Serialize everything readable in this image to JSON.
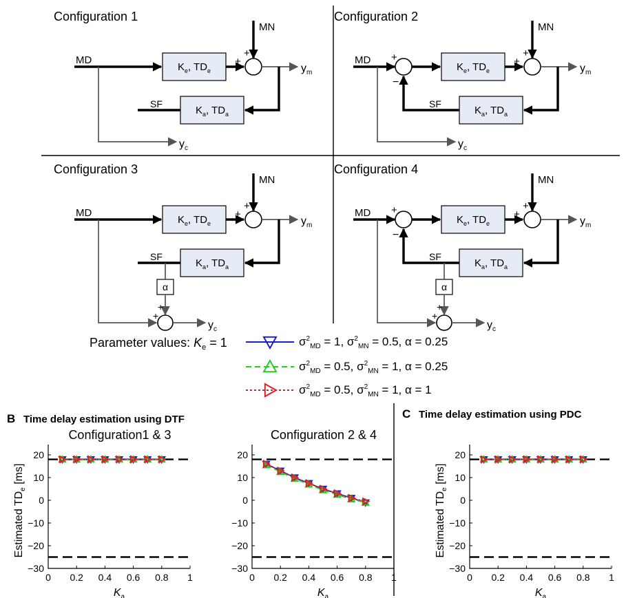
{
  "configurations": [
    {
      "title": "Configuration 1",
      "input": "MD",
      "noise": "MN",
      "feedback": "SF",
      "forward_block": {
        "k": "K",
        "k_sub": "e",
        "td": "TD",
        "td_sub": "e"
      },
      "feedback_block": {
        "k": "K",
        "k_sub": "a",
        "td": "TD",
        "td_sub": "a"
      },
      "out_m": "y",
      "out_m_sub": "m",
      "out_c": "y",
      "out_c_sub": "c",
      "plus": "+",
      "minus": "−"
    },
    {
      "title": "Configuration 2",
      "input": "MD",
      "noise": "MN",
      "feedback": "SF",
      "forward_block": {
        "k": "K",
        "k_sub": "e",
        "td": "TD",
        "td_sub": "e"
      },
      "feedback_block": {
        "k": "K",
        "k_sub": "a",
        "td": "TD",
        "td_sub": "a"
      },
      "out_m": "y",
      "out_m_sub": "m",
      "out_c": "y",
      "out_c_sub": "c",
      "plus": "+",
      "minus": "−"
    },
    {
      "title": "Configuration 3",
      "input": "MD",
      "noise": "MN",
      "feedback": "SF",
      "gain": "α",
      "forward_block": {
        "k": "K",
        "k_sub": "e",
        "td": "TD",
        "td_sub": "e"
      },
      "feedback_block": {
        "k": "K",
        "k_sub": "a",
        "td": "TD",
        "td_sub": "a"
      },
      "out_m": "y",
      "out_m_sub": "m",
      "out_c": "y",
      "out_c_sub": "c",
      "plus": "+",
      "minus": "−"
    },
    {
      "title": "Configuration 4",
      "input": "MD",
      "noise": "MN",
      "feedback": "SF",
      "gain": "α",
      "forward_block": {
        "k": "K",
        "k_sub": "e",
        "td": "TD",
        "td_sub": "e"
      },
      "feedback_block": {
        "k": "K",
        "k_sub": "a",
        "td": "TD",
        "td_sub": "a"
      },
      "out_m": "y",
      "out_m_sub": "m",
      "out_c": "y",
      "out_c_sub": "c",
      "plus": "+",
      "minus": "−"
    }
  ],
  "legend": {
    "prefix": "Parameter values: ",
    "k_symbol": "K",
    "k_sub": "e",
    "k_value": " = 1",
    "entries": [
      {
        "sigma": "σ",
        "sup": "2",
        "sub1": "MD",
        "eq1": " = 1, σ",
        "sub2": "MN",
        "eq2": " = 0.5, α = 0.25",
        "color": "#1c1cc8",
        "marker": "triangle-down",
        "dash": "solid"
      },
      {
        "sigma": "σ",
        "sup": "2",
        "sub1": "MD",
        "eq1": " = 0.5, σ",
        "sub2": "MN",
        "eq2": " = 1, α = 0.25",
        "color": "#22cc22",
        "marker": "triangle-up",
        "dash": "dashed"
      },
      {
        "sigma": "σ",
        "sup": "2",
        "sub1": "MD",
        "eq1": " = 0.5, σ",
        "sub2": "MN",
        "eq2": " = 1, α = 1",
        "color": "#e02020",
        "marker": "triangle-right",
        "dash": "dotted"
      }
    ]
  },
  "sections": {
    "B": {
      "letter": "B",
      "title": "Time delay estimation using DTF"
    },
    "C": {
      "letter": "C",
      "title": "Time delay estimation using PDC"
    }
  },
  "chart_data": [
    {
      "type": "line",
      "title": "Configuration1 & 3",
      "ylabel": "Estimated TD",
      "ylabel_sub": "e",
      "ylabel_unit": " [ms]",
      "xlabel": "K",
      "xlabel_sub": "a",
      "xlim": [
        0,
        1
      ],
      "ylim": [
        -30,
        20
      ],
      "xticks": [
        0,
        0.2,
        0.4,
        0.6,
        0.8,
        1
      ],
      "xtick_labels": [
        "0",
        "0.2",
        "0.4",
        "0.6",
        "0.8",
        "1"
      ],
      "yticks": [
        20,
        10,
        0,
        -10,
        -20,
        -30
      ],
      "ytick_labels": [
        "20",
        "10",
        "0",
        "−10",
        "−20",
        "−30"
      ],
      "reference_lines": [
        18,
        -25
      ],
      "x": [
        0.1,
        0.2,
        0.3,
        0.4,
        0.5,
        0.6,
        0.7,
        0.8
      ],
      "series": [
        {
          "values": [
            18,
            18,
            18,
            18,
            18,
            18,
            18,
            18
          ]
        },
        {
          "values": [
            18,
            18,
            18,
            18,
            18,
            18,
            18,
            18
          ]
        },
        {
          "values": [
            18,
            18,
            18,
            18,
            18,
            18,
            18,
            18
          ]
        }
      ]
    },
    {
      "type": "line",
      "title": "Configuration 2 & 4",
      "xlabel": "K",
      "xlabel_sub": "a",
      "xlim": [
        0,
        1
      ],
      "ylim": [
        -30,
        20
      ],
      "xticks": [
        0,
        0.2,
        0.4,
        0.6,
        0.8,
        1
      ],
      "xtick_labels": [
        "0",
        "0.2",
        "0.4",
        "0.6",
        "0.8",
        "1"
      ],
      "yticks": [
        20,
        10,
        0,
        -10,
        -20,
        -30
      ],
      "ytick_labels": [
        "20",
        "10",
        "0",
        "−10",
        "−20",
        "−30"
      ],
      "reference_lines": [
        18,
        -25
      ],
      "x": [
        0.1,
        0.2,
        0.3,
        0.4,
        0.5,
        0.6,
        0.7,
        0.8
      ],
      "series": [
        {
          "values": [
            16,
            13,
            10,
            7.5,
            5,
            3,
            1,
            -1
          ]
        },
        {
          "values": [
            15.5,
            12.5,
            9.5,
            7,
            4.5,
            2.5,
            0.5,
            -1
          ]
        },
        {
          "values": [
            16,
            13,
            10,
            7.5,
            5,
            3,
            1,
            -0.5
          ]
        }
      ]
    },
    {
      "type": "line",
      "ylabel": "Estimated TD",
      "ylabel_sub": "e",
      "ylabel_unit": " [ms]",
      "xlabel": "K",
      "xlabel_sub": "a",
      "xlim": [
        0,
        1
      ],
      "ylim": [
        -30,
        20
      ],
      "xticks": [
        0,
        0.2,
        0.4,
        0.6,
        0.8,
        1
      ],
      "xtick_labels": [
        "0",
        "0.2",
        "0.4",
        "0.6",
        "0.8",
        "1"
      ],
      "yticks": [
        20,
        10,
        0,
        -10,
        -20,
        -30
      ],
      "ytick_labels": [
        "20",
        "10",
        "0",
        "−10",
        "−20",
        "−30"
      ],
      "reference_lines": [
        18,
        -25
      ],
      "x": [
        0.1,
        0.2,
        0.3,
        0.4,
        0.5,
        0.6,
        0.7,
        0.8
      ],
      "series": [
        {
          "values": [
            18,
            18,
            18,
            18,
            18,
            18,
            18,
            18
          ]
        },
        {
          "values": [
            18,
            18,
            18,
            18,
            18,
            18,
            18,
            18
          ]
        },
        {
          "values": [
            18,
            18,
            18,
            18,
            18,
            18,
            18,
            18
          ]
        }
      ]
    }
  ]
}
